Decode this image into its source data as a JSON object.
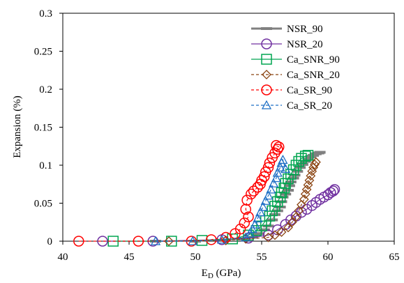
{
  "chart_data": {
    "type": "scatter",
    "title": "",
    "xlabel": "E",
    "xlabel_subscript": "D",
    "xlabel_unit": " (GPa)",
    "ylabel": "Expansion (%)",
    "xlim": [
      40,
      65
    ],
    "ylim": [
      0,
      0.3
    ],
    "xticks": [
      40,
      45,
      50,
      55,
      60,
      65
    ],
    "yticks": [
      0,
      0.05,
      0.1,
      0.15,
      0.2,
      0.25,
      0.3
    ],
    "xtick_labels": [
      "40",
      "45",
      "50",
      "55",
      "60",
      "65"
    ],
    "ytick_labels": [
      "0",
      "0.05",
      "0.1",
      "0.15",
      "0.2",
      "0.25",
      "0.3"
    ],
    "grid": false,
    "legend_position": "top-right",
    "series": [
      {
        "name": "NSR_90",
        "marker": "dash",
        "line": "solid",
        "color": "#808080",
        "points": [
          [
            47.0,
            0.0
          ],
          [
            50.0,
            0.0
          ],
          [
            52.0,
            0.001
          ],
          [
            53.5,
            0.003
          ],
          [
            54.3,
            0.005
          ],
          [
            54.8,
            0.01
          ],
          [
            55.2,
            0.015
          ],
          [
            55.5,
            0.02
          ],
          [
            55.8,
            0.028
          ],
          [
            56.0,
            0.035
          ],
          [
            56.2,
            0.04
          ],
          [
            56.4,
            0.045
          ],
          [
            56.5,
            0.052
          ],
          [
            56.6,
            0.058
          ],
          [
            56.8,
            0.062
          ],
          [
            57.0,
            0.067
          ],
          [
            57.1,
            0.073
          ],
          [
            57.2,
            0.078
          ],
          [
            57.4,
            0.083
          ],
          [
            57.5,
            0.087
          ],
          [
            57.7,
            0.092
          ],
          [
            57.9,
            0.097
          ],
          [
            58.1,
            0.101
          ],
          [
            58.3,
            0.105
          ],
          [
            58.5,
            0.108
          ],
          [
            58.7,
            0.111
          ],
          [
            58.9,
            0.113
          ],
          [
            59.1,
            0.115
          ],
          [
            59.3,
            0.116
          ],
          [
            59.4,
            0.117
          ]
        ]
      },
      {
        "name": "NSR_20",
        "marker": "circle",
        "line": "solid",
        "color": "#7030A0",
        "points": [
          [
            43.0,
            0.0
          ],
          [
            46.8,
            0.0
          ],
          [
            52.0,
            0.002
          ],
          [
            54.0,
            0.004
          ],
          [
            55.5,
            0.008
          ],
          [
            56.2,
            0.015
          ],
          [
            56.8,
            0.022
          ],
          [
            57.2,
            0.028
          ],
          [
            57.6,
            0.033
          ],
          [
            58.0,
            0.038
          ],
          [
            58.4,
            0.042
          ],
          [
            58.8,
            0.047
          ],
          [
            59.1,
            0.051
          ],
          [
            59.4,
            0.055
          ],
          [
            59.7,
            0.058
          ],
          [
            60.0,
            0.061
          ],
          [
            60.2,
            0.064
          ],
          [
            60.4,
            0.066
          ],
          [
            60.5,
            0.068
          ]
        ]
      },
      {
        "name": "Ca_SNR_90",
        "marker": "square",
        "line": "solid",
        "color": "#00A550",
        "points": [
          [
            43.8,
            0.0
          ],
          [
            48.2,
            0.0
          ],
          [
            50.5,
            0.001
          ],
          [
            52.8,
            0.003
          ],
          [
            54.0,
            0.008
          ],
          [
            54.6,
            0.014
          ],
          [
            55.0,
            0.02
          ],
          [
            55.3,
            0.027
          ],
          [
            55.6,
            0.033
          ],
          [
            55.8,
            0.04
          ],
          [
            56.0,
            0.046
          ],
          [
            56.2,
            0.052
          ],
          [
            56.4,
            0.058
          ],
          [
            56.5,
            0.064
          ],
          [
            56.7,
            0.07
          ],
          [
            56.8,
            0.076
          ],
          [
            57.0,
            0.082
          ],
          [
            57.2,
            0.088
          ],
          [
            57.4,
            0.094
          ],
          [
            57.6,
            0.1
          ],
          [
            57.8,
            0.105
          ],
          [
            58.0,
            0.109
          ],
          [
            58.3,
            0.112
          ],
          [
            58.5,
            0.113
          ]
        ]
      },
      {
        "name": "Ca_SNR_20",
        "marker": "diamond",
        "line": "dashed",
        "color": "#8B4513",
        "points": [
          [
            48.0,
            0.0
          ],
          [
            52.3,
            0.001
          ],
          [
            53.8,
            0.003
          ],
          [
            55.5,
            0.005
          ],
          [
            56.0,
            0.008
          ],
          [
            56.5,
            0.012
          ],
          [
            57.0,
            0.018
          ],
          [
            57.3,
            0.025
          ],
          [
            57.6,
            0.032
          ],
          [
            57.8,
            0.04
          ],
          [
            58.0,
            0.048
          ],
          [
            58.2,
            0.055
          ],
          [
            58.3,
            0.062
          ],
          [
            58.4,
            0.068
          ],
          [
            58.5,
            0.074
          ],
          [
            58.6,
            0.08
          ],
          [
            58.7,
            0.086
          ],
          [
            58.8,
            0.092
          ],
          [
            58.9,
            0.097
          ],
          [
            59.0,
            0.101
          ],
          [
            59.1,
            0.104
          ]
        ]
      },
      {
        "name": "Ca_SR_90",
        "marker": "circle",
        "line": "dashed",
        "color": "#FF0000",
        "points": [
          [
            41.2,
            0.0
          ],
          [
            45.7,
            0.0
          ],
          [
            49.7,
            0.0
          ],
          [
            51.2,
            0.002
          ],
          [
            52.3,
            0.005
          ],
          [
            53.0,
            0.01
          ],
          [
            53.4,
            0.016
          ],
          [
            53.7,
            0.024
          ],
          [
            54.0,
            0.032
          ],
          [
            53.8,
            0.042
          ],
          [
            53.9,
            0.054
          ],
          [
            54.2,
            0.062
          ],
          [
            54.4,
            0.066
          ],
          [
            54.7,
            0.071
          ],
          [
            54.9,
            0.075
          ],
          [
            55.0,
            0.08
          ],
          [
            55.2,
            0.085
          ],
          [
            55.3,
            0.091
          ],
          [
            55.5,
            0.097
          ],
          [
            55.6,
            0.103
          ],
          [
            55.8,
            0.11
          ],
          [
            56.0,
            0.116
          ],
          [
            56.2,
            0.121
          ],
          [
            56.3,
            0.124
          ],
          [
            56.1,
            0.126
          ]
        ]
      },
      {
        "name": "Ca_SR_20",
        "marker": "triangle",
        "line": "dashed",
        "color": "#1F6FC5",
        "points": [
          [
            47.0,
            0.0
          ],
          [
            49.8,
            0.0
          ],
          [
            52.0,
            0.002
          ],
          [
            53.8,
            0.005
          ],
          [
            54.1,
            0.01
          ],
          [
            54.3,
            0.016
          ],
          [
            54.5,
            0.022
          ],
          [
            54.7,
            0.03
          ],
          [
            54.9,
            0.038
          ],
          [
            55.1,
            0.045
          ],
          [
            55.3,
            0.053
          ],
          [
            55.5,
            0.06
          ],
          [
            55.7,
            0.068
          ],
          [
            55.9,
            0.076
          ],
          [
            56.1,
            0.083
          ],
          [
            56.2,
            0.09
          ],
          [
            56.4,
            0.097
          ],
          [
            56.5,
            0.103
          ],
          [
            56.6,
            0.107
          ],
          [
            56.8,
            0.095
          ]
        ]
      }
    ]
  }
}
